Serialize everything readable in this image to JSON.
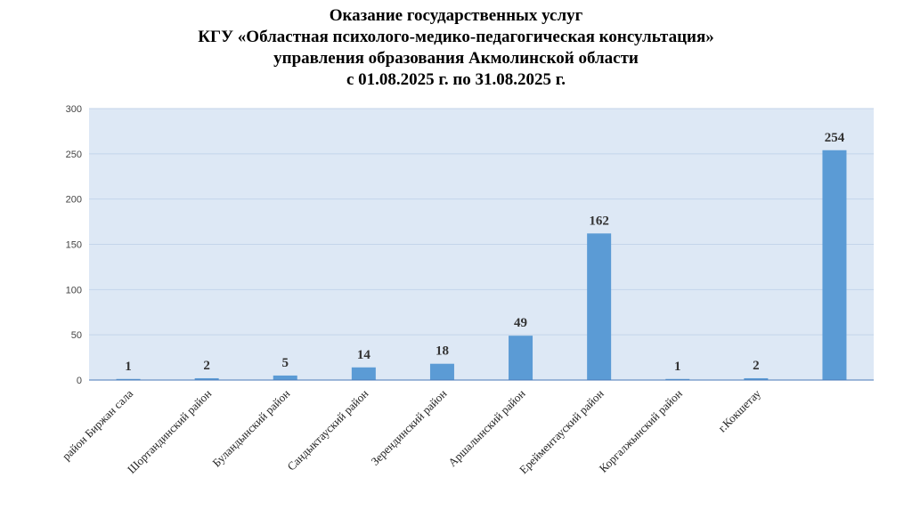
{
  "chart_data": {
    "type": "bar",
    "title": [
      "Оказание государственных услуг",
      "КГУ «Областная психолого-медико-педагогическая консультация»",
      "управления образования Акмолинской области",
      "с 01.08.2025 г. по 31.08.2025 г."
    ],
    "categories": [
      "район Биржан сала",
      "Шортандинский район",
      "Буландынский район",
      "Сандыктауский район",
      "Зерендинский район",
      "Аршалынский район",
      "Ерейментауский район",
      "Коргалжынский район",
      "г.Кокшетау",
      ""
    ],
    "values": [
      1,
      2,
      5,
      14,
      18,
      49,
      162,
      1,
      2,
      254
    ],
    "data_labels": [
      "1",
      "2",
      "5",
      "14",
      "18",
      "49",
      "162",
      "1",
      "2",
      "254"
    ],
    "ylim": [
      0,
      300
    ],
    "yticks": [
      0,
      50,
      100,
      150,
      200,
      250,
      300
    ],
    "ytick_labels": [
      "0",
      "50",
      "100",
      "150",
      "200",
      "250",
      "300"
    ],
    "grid": true,
    "colors": {
      "bar": "#5b9bd5",
      "plot_background": "#dde8f5",
      "grid": "#c3d5ea",
      "axis": "#4a7ab8"
    }
  }
}
